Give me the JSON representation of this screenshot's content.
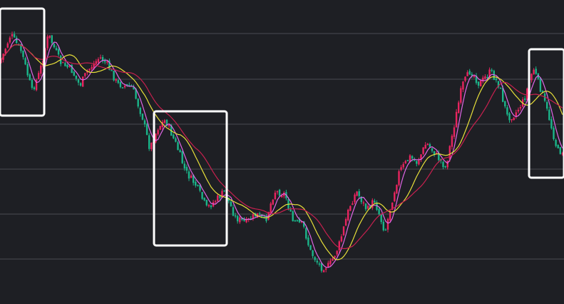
{
  "theme": {
    "background": "#1e1f24",
    "grid": "#4a4b52",
    "up": "#e8245f",
    "down": "#1bb58a",
    "ma_fast": "#e066e6",
    "ma_mid": "#e8e03a",
    "ma_slow": "#c8204f",
    "highlight": "#ffffff"
  },
  "chart_data": {
    "type": "candlestick",
    "title": "",
    "xlabel": "",
    "ylabel": "",
    "grid": "horizontal",
    "ylim": [
      0,
      426
    ],
    "gridlines": [
      47,
      111,
      174,
      237,
      300,
      363
    ],
    "anchors": [
      [
        0,
        88
      ],
      [
        15,
        48
      ],
      [
        30,
        72
      ],
      [
        45,
        128
      ],
      [
        56,
        100
      ],
      [
        68,
        48
      ],
      [
        85,
        88
      ],
      [
        100,
        98
      ],
      [
        112,
        120
      ],
      [
        122,
        100
      ],
      [
        140,
        80
      ],
      [
        150,
        90
      ],
      [
        165,
        118
      ],
      [
        185,
        122
      ],
      [
        200,
        165
      ],
      [
        210,
        208
      ],
      [
        222,
        178
      ],
      [
        232,
        168
      ],
      [
        248,
        205
      ],
      [
        260,
        240
      ],
      [
        275,
        260
      ],
      [
        290,
        292
      ],
      [
        305,
        278
      ],
      [
        315,
        268
      ],
      [
        330,
        305
      ],
      [
        345,
        312
      ],
      [
        360,
        300
      ],
      [
        372,
        310
      ],
      [
        385,
        268
      ],
      [
        400,
        272
      ],
      [
        410,
        310
      ],
      [
        425,
        315
      ],
      [
        435,
        352
      ],
      [
        450,
        375
      ],
      [
        462,
        372
      ],
      [
        475,
        345
      ],
      [
        490,
        290
      ],
      [
        500,
        268
      ],
      [
        515,
        295
      ],
      [
        525,
        280
      ],
      [
        540,
        325
      ],
      [
        550,
        280
      ],
      [
        560,
        240
      ],
      [
        575,
        220
      ],
      [
        585,
        228
      ],
      [
        598,
        200
      ],
      [
        610,
        215
      ],
      [
        625,
        235
      ],
      [
        635,
        185
      ],
      [
        648,
        120
      ],
      [
        660,
        98
      ],
      [
        672,
        118
      ],
      [
        688,
        100
      ],
      [
        700,
        120
      ],
      [
        712,
        165
      ],
      [
        722,
        160
      ],
      [
        735,
        140
      ],
      [
        748,
        95
      ],
      [
        760,
        130
      ],
      [
        770,
        165
      ],
      [
        782,
        212
      ]
    ],
    "series": [
      {
        "name": "",
        "kind": "ma",
        "period": 5
      },
      {
        "name": "",
        "kind": "ma",
        "period": 14
      },
      {
        "name": "",
        "kind": "ma",
        "period": 22
      }
    ],
    "highlights": [
      {
        "name": "box-1",
        "x0": 0,
        "x1": 62,
        "y_top": 12,
        "y_bottom": 162
      },
      {
        "name": "box-2",
        "x0": 216,
        "x1": 318,
        "y_top": 156,
        "y_bottom": 344
      },
      {
        "name": "box-3",
        "x0": 742,
        "x1": 791,
        "y_top": 69,
        "y_bottom": 249
      }
    ]
  }
}
